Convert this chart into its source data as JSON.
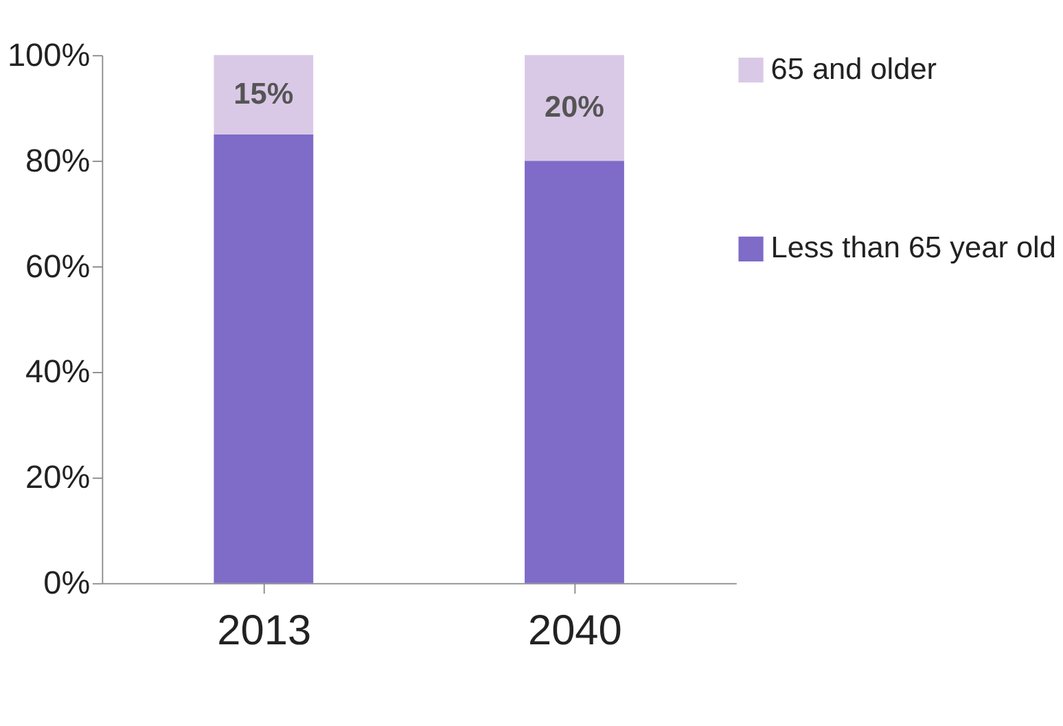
{
  "chart_data": {
    "type": "bar",
    "stacked": true,
    "categories": [
      "2013",
      "2040"
    ],
    "series": [
      {
        "name": "Less than 65 year old",
        "color": "#7f6bc8",
        "values": [
          85,
          80
        ]
      },
      {
        "name": "65 and older",
        "color": "#d9c9e6",
        "values": [
          15,
          20
        ],
        "value_labels": [
          "15%",
          "20%"
        ]
      }
    ],
    "ylim": [
      0,
      100
    ],
    "yticks": [
      {
        "value": 0,
        "label": "0%"
      },
      {
        "value": 20,
        "label": "20%"
      },
      {
        "value": 40,
        "label": "40%"
      },
      {
        "value": 60,
        "label": "60%"
      },
      {
        "value": 80,
        "label": "80%"
      },
      {
        "value": 100,
        "label": "100%"
      }
    ],
    "grid": false,
    "legend": "right"
  }
}
